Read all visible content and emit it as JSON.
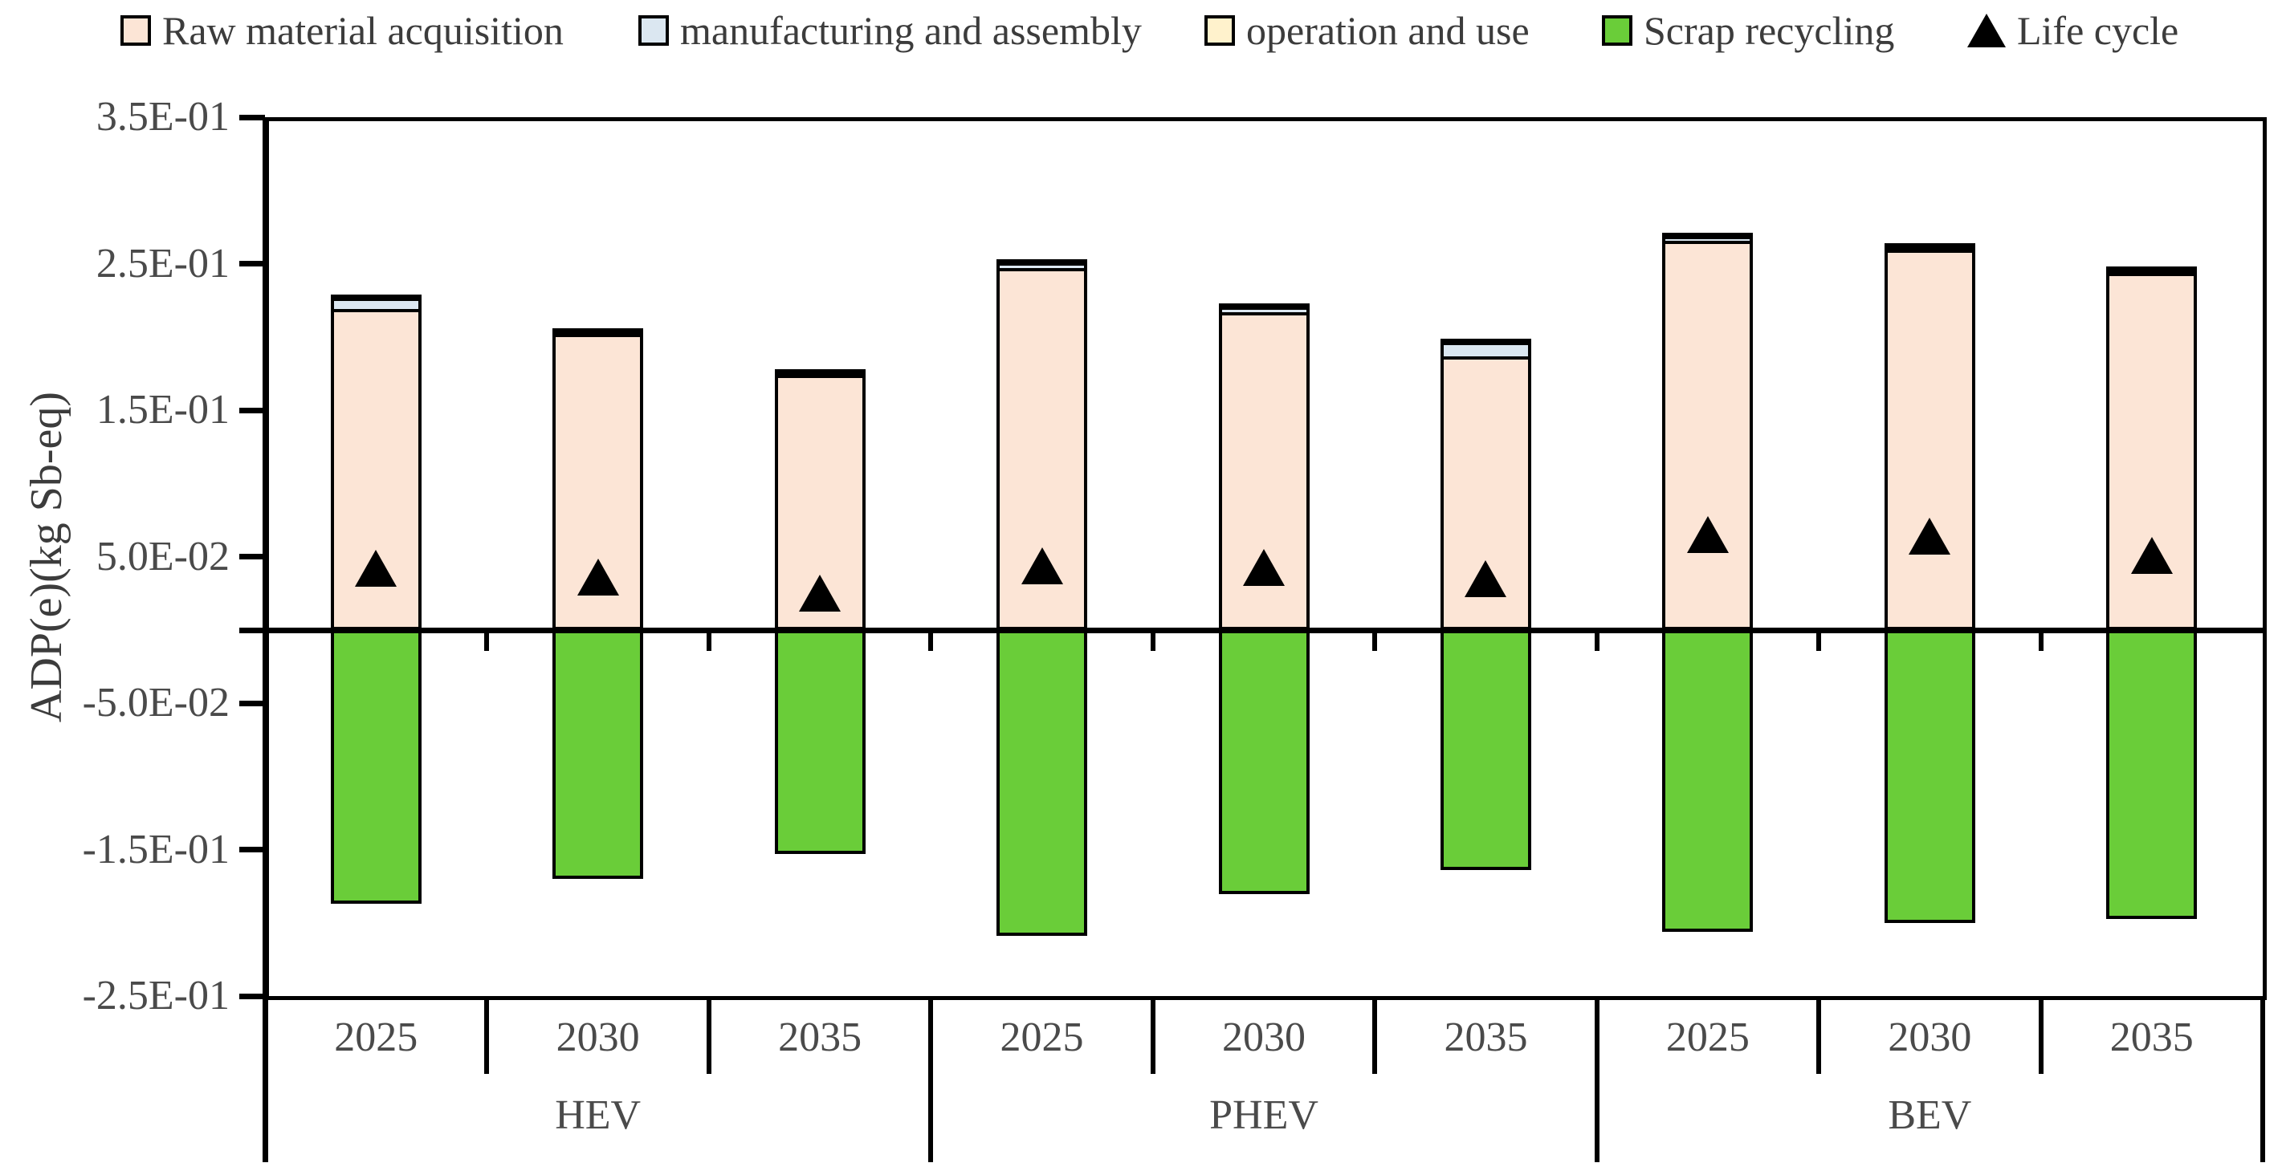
{
  "chart_data": {
    "type": "bar",
    "stacked": true,
    "title": "",
    "ylabel": "ADP(e)(kg Sb-eq)",
    "unit": "kg Sb-eq",
    "grid": false,
    "legend_position": "top",
    "y_axis": {
      "min": -0.25,
      "max": 0.35,
      "tick_step": 0.1,
      "ticks": [
        {
          "v": 0.35,
          "label": "3.5E-01"
        },
        {
          "v": 0.25,
          "label": "2.5E-01"
        },
        {
          "v": 0.15,
          "label": "1.5E-01"
        },
        {
          "v": 0.05,
          "label": "5.0E-02"
        },
        {
          "v": 0.0,
          "label": ""
        },
        {
          "v": -0.05,
          "label": "-5.0E-02"
        },
        {
          "v": -0.15,
          "label": "-1.5E-01"
        },
        {
          "v": -0.25,
          "label": "-2.5E-01"
        }
      ]
    },
    "x_axis": {
      "year_labels": [
        "2025",
        "2030",
        "2035",
        "2025",
        "2030",
        "2035",
        "2025",
        "2030",
        "2035"
      ],
      "group_labels": [
        "HEV",
        "PHEV",
        "BEV"
      ],
      "years_per_group": 3
    },
    "series": [
      {
        "name": "Raw material acquisition",
        "color": "#FCE5D6",
        "values": [
          0.219,
          0.202,
          0.174,
          0.247,
          0.217,
          0.187,
          0.266,
          0.26,
          0.244
        ]
      },
      {
        "name": "manufacturing and assembly",
        "color": "#DBE7F1",
        "values": [
          0.008,
          0.003,
          0.003,
          0.005,
          0.005,
          0.011,
          0.004,
          0.003,
          0.003
        ]
      },
      {
        "name": "operation and use",
        "color": "#FFF2CC",
        "values": [
          0.002,
          0.001,
          0.001,
          0.001,
          0.001,
          0.001,
          0.001,
          0.001,
          0.001
        ]
      },
      {
        "name": "Scrap recycling",
        "color": "#6ACD39",
        "values": [
          -0.187,
          -0.17,
          -0.153,
          -0.209,
          -0.18,
          -0.164,
          -0.206,
          -0.2,
          -0.197
        ]
      }
    ],
    "markers": {
      "name": "Life cycle",
      "symbol": "triangle",
      "color": "#000000",
      "values": [
        0.042,
        0.036,
        0.025,
        0.044,
        0.043,
        0.035,
        0.065,
        0.064,
        0.051
      ]
    },
    "legend": {
      "items": [
        {
          "label": "Raw material acquisition",
          "swatch": "square",
          "color": "#FCE5D6"
        },
        {
          "label": "manufacturing and assembly",
          "swatch": "square",
          "color": "#DBE7F1"
        },
        {
          "label": "operation and use",
          "swatch": "square",
          "color": "#FFF2CC"
        },
        {
          "label": "Scrap recycling",
          "swatch": "square",
          "color": "#6ACD39"
        },
        {
          "label": "Life cycle",
          "swatch": "triangle",
          "color": "#000000"
        }
      ]
    }
  }
}
